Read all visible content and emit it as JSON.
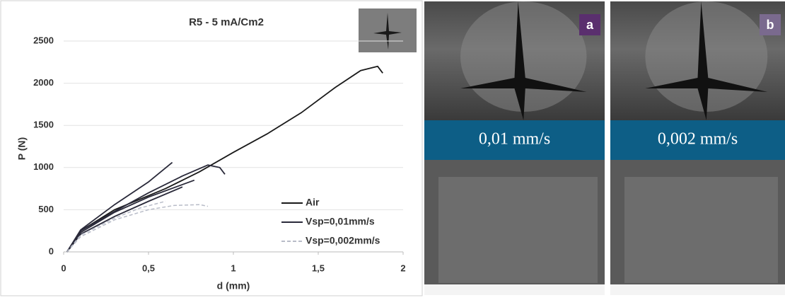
{
  "chart_data": {
    "type": "line",
    "title": "R5 - 5 mA/Cm2",
    "x_label": "d (mm)",
    "y_label": "P (N)",
    "xlim": [
      0,
      2
    ],
    "ylim": [
      0,
      2500
    ],
    "xticks": [
      0,
      {
        "value": 0.5,
        "label": "0,5"
      },
      1,
      {
        "value": 1.5,
        "label": "1,5"
      },
      2
    ],
    "yticks": [
      0,
      500,
      1000,
      1500,
      2000,
      2500
    ],
    "grid": true,
    "legend": "lower right",
    "series": [
      {
        "name": "Air",
        "color": "#1a1a1a",
        "dash": false,
        "x": [
          0.02,
          0.1,
          0.3,
          0.6,
          0.8,
          1.0,
          1.2,
          1.4,
          1.6,
          1.75,
          1.85,
          1.88
        ],
        "values": [
          0,
          250,
          500,
          750,
          950,
          1180,
          1400,
          1650,
          1950,
          2150,
          2200,
          2120
        ]
      },
      {
        "name": "Vsp=0,01mm/s",
        "color": "#2a2a3a",
        "dash": false,
        "x": [
          0.02,
          0.1,
          0.3,
          0.5,
          0.64
        ],
        "values": [
          0,
          260,
          560,
          830,
          1060
        ]
      },
      {
        "name": "Vsp=0,002mm/s",
        "color": "#b8bcc8",
        "dash": true,
        "x": [
          0.02,
          0.1,
          0.3,
          0.5,
          0.65,
          0.8,
          0.85
        ],
        "values": [
          0,
          180,
          380,
          500,
          550,
          560,
          540
        ]
      },
      {
        "color": "#2a2a3a",
        "dash": false,
        "x": [
          0.02,
          0.1,
          0.3,
          0.5,
          0.7,
          0.85,
          0.92,
          0.95
        ],
        "values": [
          0,
          250,
          480,
          700,
          900,
          1030,
          1000,
          920
        ]
      },
      {
        "color": "#2a2a3a",
        "dash": false,
        "x": [
          0.02,
          0.1,
          0.3,
          0.5,
          0.77
        ],
        "values": [
          0,
          230,
          470,
          650,
          850
        ]
      },
      {
        "color": "#2a2a3a",
        "dash": false,
        "x": [
          0.02,
          0.1,
          0.3,
          0.5,
          0.7
        ],
        "values": [
          0,
          210,
          420,
          600,
          770
        ]
      },
      {
        "color": "#b8bcc8",
        "dash": true,
        "x": [
          0.02,
          0.1,
          0.3,
          0.45,
          0.6
        ],
        "values": [
          0,
          200,
          400,
          520,
          600
        ]
      }
    ]
  },
  "panels": [
    {
      "label": "a",
      "caption": "0,01 mm/s"
    },
    {
      "label": "b",
      "caption": "0,002 mm/s"
    }
  ]
}
